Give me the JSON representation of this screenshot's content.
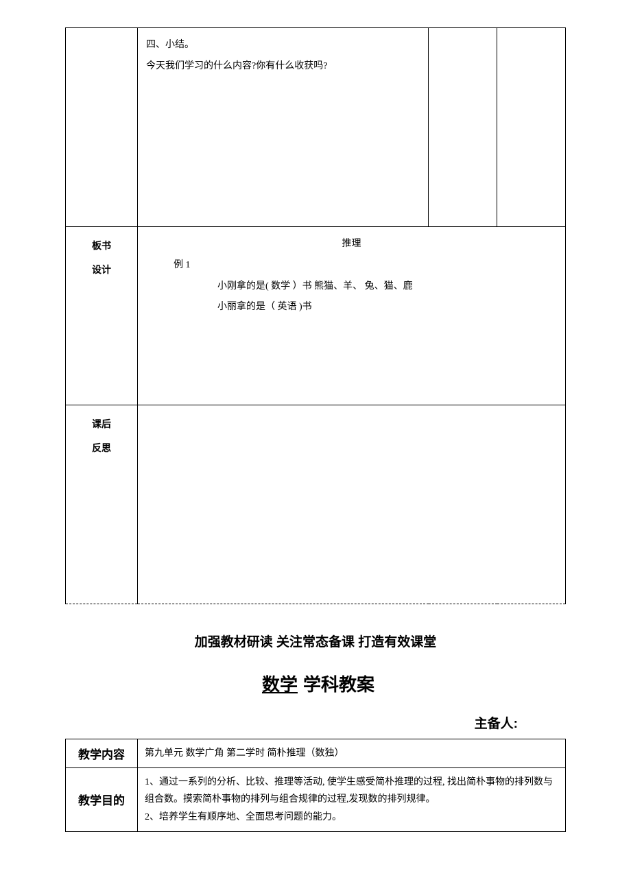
{
  "table1": {
    "row1": {
      "line1": "四、小结。",
      "line2": "今天我们学习的什么内容?你有什么收获吗?"
    },
    "row2": {
      "label_line1": "板书",
      "label_line2": "设计",
      "title": "推理",
      "example": "例 1",
      "line1": "小刚拿的是(  数学    ）书      熊猫、羊、  兔、猫、鹿",
      "line2": "小丽拿的是（  英语  )书"
    },
    "row3": {
      "label_line1": "课后",
      "label_line2": "反思"
    }
  },
  "heading1": "加强教材研读 关注常态备课 打造有效课堂",
  "heading2_underlined": "数学",
  "heading2_rest": "学科教案",
  "author_label": "主备人:",
  "table2": {
    "row1": {
      "label": "教学内容",
      "content": "第九单元     数学广角       第二学时     简朴推理（数独）"
    },
    "row2": {
      "label": "教学目的",
      "line1": "1、通过一系列的分析、比较、推理等活动, 使学生感受简朴推理的过程, 找出简朴事物的排列数与组合数。摸索简朴事物的排列与组合规律的过程,发现数的排列规律。",
      "line2": "2、培养学生有顺序地、全面思考问题的能力。"
    }
  }
}
